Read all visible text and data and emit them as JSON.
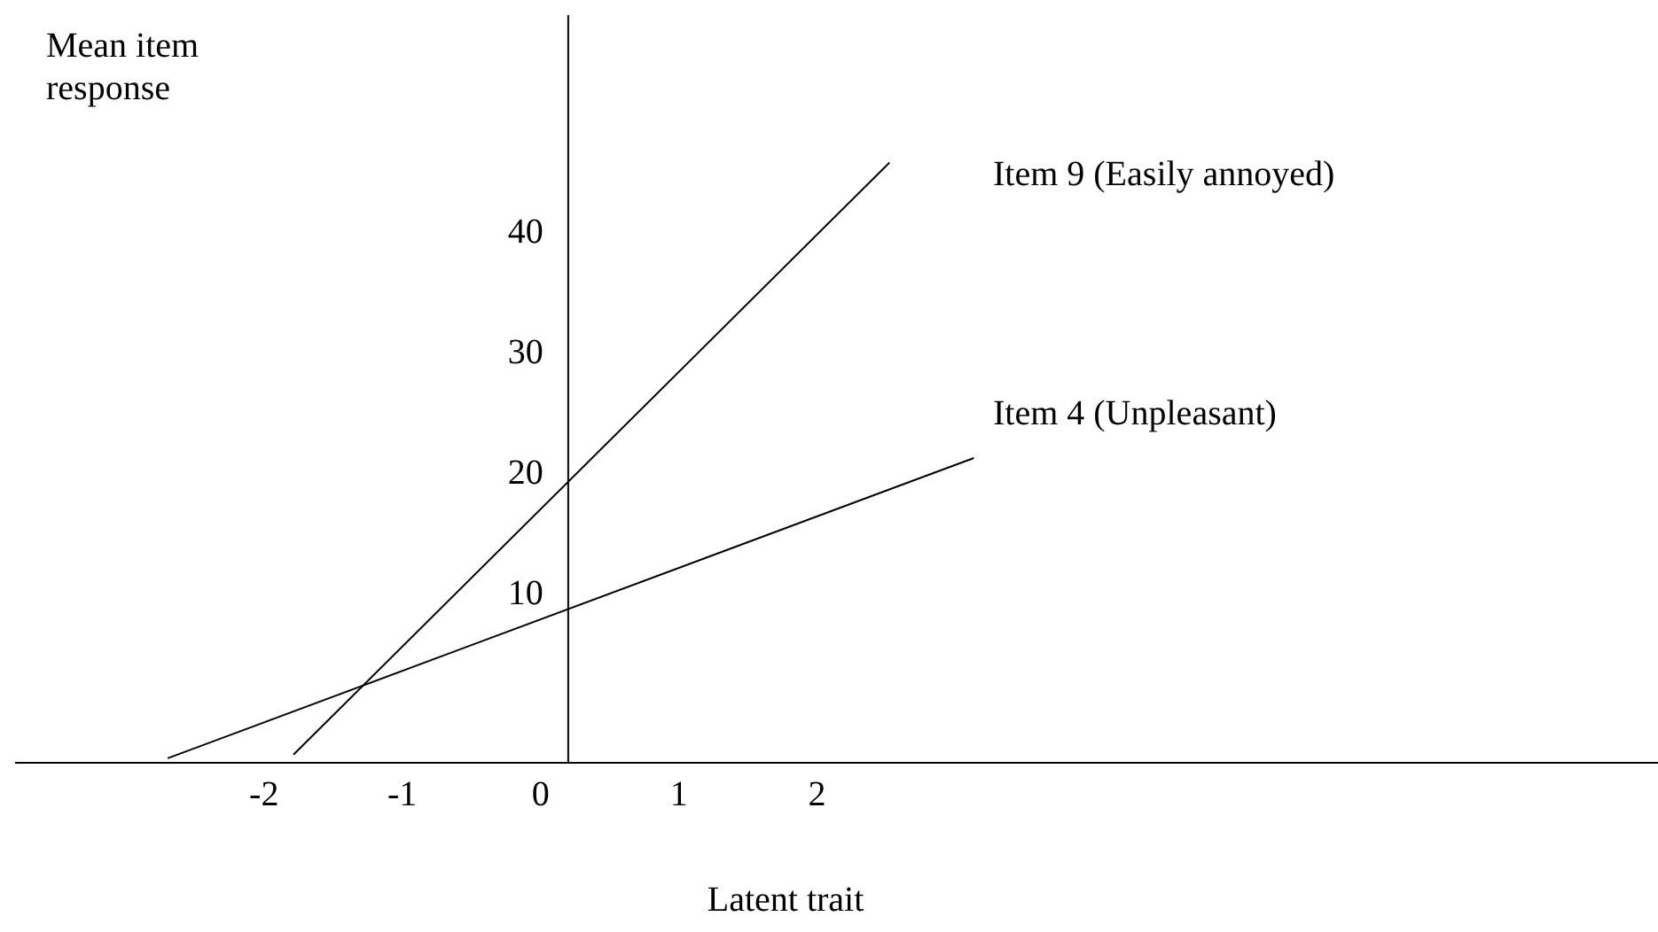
{
  "chart_data": {
    "type": "line",
    "xlabel": "Latent trait",
    "ylabel": "Mean item response",
    "xlim": [
      -3.8,
      8.1
    ],
    "xticks": [
      -2,
      -1,
      0,
      1,
      2
    ],
    "ylim": [
      -4,
      58
    ],
    "yticks": [
      10,
      20,
      30,
      40
    ],
    "series": [
      {
        "name": "Item 9 (Easily annoyed)",
        "color": "#000000",
        "x": [
          -1.78,
          2.53
        ],
        "values": [
          -3.4,
          45.7
        ]
      },
      {
        "name": "Item 4 (Unpleasant)",
        "color": "#000000",
        "x": [
          -2.69,
          3.14
        ],
        "values": [
          -3.7,
          21.2
        ]
      }
    ]
  }
}
